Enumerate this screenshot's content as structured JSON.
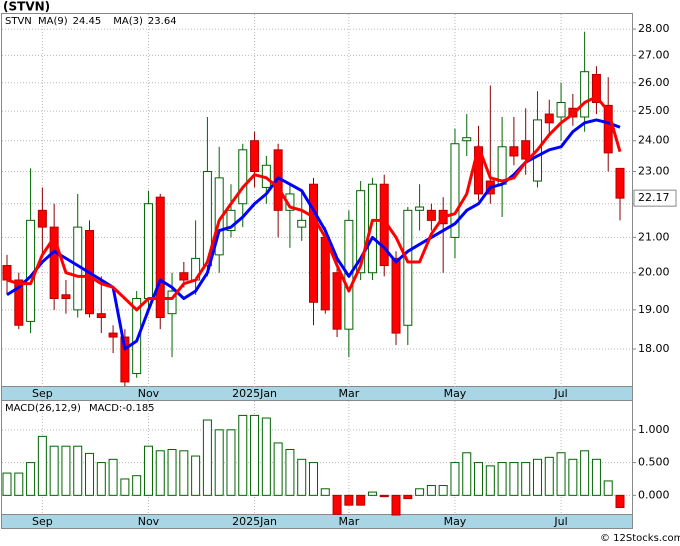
{
  "chart_data": [
    {
      "type": "candlestick",
      "title": "(STVN)",
      "ticker": "STVN",
      "categories": [
        null,
        null,
        null,
        "Sep",
        null,
        null,
        null,
        null,
        null,
        null,
        null,
        null,
        "Nov",
        null,
        null,
        null,
        null,
        null,
        null,
        null,
        null,
        "2025Jan",
        null,
        null,
        null,
        null,
        null,
        null,
        null,
        "Mar",
        null,
        null,
        null,
        null,
        null,
        null,
        null,
        null,
        "May",
        null,
        null,
        null,
        null,
        null,
        null,
        null,
        null,
        "Jul",
        null,
        null,
        null,
        null,
        null
      ],
      "open": [
        20.2,
        19.8,
        18.7,
        21.8,
        21.3,
        19.4,
        19.0,
        21.2,
        18.9,
        18.4,
        18.3,
        17.4,
        19.3,
        22.2,
        18.9,
        20.0,
        19.8,
        20.2,
        20.5,
        21.2,
        22.0,
        24.0,
        22.5,
        23.7,
        21.8,
        21.3,
        22.6,
        21.0,
        20.0,
        18.5,
        20.0,
        20.0,
        22.6,
        20.4,
        18.6,
        21.8,
        21.8,
        21.8,
        21.0,
        24.0,
        23.8,
        22.7,
        22.6,
        23.8,
        24.0,
        22.7,
        24.9,
        24.8,
        25.1,
        24.8,
        26.3,
        25.2,
        23.1
      ],
      "high": [
        20.5,
        20.0,
        23.1,
        22.5,
        22.0,
        19.8,
        22.3,
        21.5,
        19.9,
        18.6,
        18.5,
        19.5,
        22.4,
        22.3,
        20.0,
        20.3,
        21.5,
        24.8,
        23.8,
        22.6,
        23.9,
        24.3,
        23.5,
        23.9,
        22.6,
        22.4,
        22.8,
        21.3,
        20.4,
        21.8,
        22.7,
        22.8,
        22.9,
        20.6,
        21.9,
        22.6,
        22.0,
        22.2,
        24.4,
        24.9,
        24.5,
        25.9,
        24.8,
        24.8,
        25.1,
        25.7,
        25.4,
        26.0,
        25.6,
        27.9,
        26.6,
        26.2,
        23.1
      ],
      "low": [
        19.4,
        18.5,
        18.4,
        20.5,
        19.0,
        18.9,
        18.8,
        18.8,
        18.4,
        17.9,
        17.1,
        17.3,
        19.0,
        18.5,
        17.8,
        19.6,
        19.4,
        19.9,
        20.0,
        21.0,
        21.3,
        22.5,
        22.0,
        21.0,
        20.7,
        20.9,
        18.6,
        18.9,
        18.3,
        17.8,
        19.8,
        19.8,
        19.9,
        18.1,
        18.1,
        21.2,
        21.2,
        20.0,
        20.4,
        23.5,
        22.1,
        22.0,
        21.6,
        23.2,
        22.9,
        22.5,
        24.2,
        24.0,
        24.5,
        24.3,
        24.9,
        23.0,
        21.5
      ],
      "close": [
        19.8,
        18.6,
        21.5,
        21.3,
        19.3,
        19.3,
        21.3,
        18.9,
        18.8,
        18.3,
        17.2,
        19.3,
        22.0,
        18.8,
        19.5,
        19.8,
        20.4,
        23.0,
        22.8,
        21.8,
        23.7,
        23.0,
        23.2,
        21.8,
        22.3,
        21.5,
        19.2,
        19.0,
        18.5,
        21.5,
        22.4,
        22.6,
        20.2,
        18.4,
        21.8,
        21.9,
        21.5,
        21.4,
        23.9,
        24.1,
        22.3,
        22.3,
        23.8,
        23.5,
        23.4,
        24.7,
        24.6,
        25.3,
        24.8,
        26.4,
        25.3,
        23.6,
        22.17
      ],
      "series": [
        {
          "name": "MA(9)",
          "color": "#0000ff",
          "values": [
            19.4,
            19.6,
            19.9,
            20.3,
            20.6,
            20.4,
            20.2,
            20.0,
            19.8,
            19.6,
            18.0,
            18.2,
            19.0,
            19.8,
            19.6,
            19.3,
            19.5,
            20.0,
            21.2,
            21.3,
            21.6,
            22.0,
            22.3,
            22.8,
            22.6,
            22.4,
            21.8,
            21.2,
            20.4,
            19.9,
            20.4,
            21.0,
            20.7,
            20.3,
            20.6,
            20.8,
            21.0,
            21.2,
            21.4,
            21.8,
            22.0,
            22.5,
            22.6,
            22.9,
            23.3,
            23.5,
            23.7,
            23.8,
            24.3,
            24.6,
            24.7,
            24.6,
            24.45
          ]
        },
        {
          "name": "MA(3)",
          "color": "#ff0000",
          "values": [
            19.8,
            19.7,
            19.7,
            20.5,
            21.0,
            20.0,
            19.9,
            19.9,
            19.7,
            19.6,
            19.3,
            19.0,
            19.3,
            19.3,
            19.3,
            19.7,
            19.8,
            20.3,
            21.5,
            22.0,
            22.5,
            22.9,
            22.8,
            22.5,
            21.9,
            21.8,
            21.6,
            21.0,
            20.2,
            19.5,
            20.2,
            21.5,
            21.5,
            21.0,
            20.3,
            20.3,
            21.1,
            21.6,
            21.7,
            22.3,
            23.8,
            22.8,
            22.7,
            22.8,
            23.3,
            23.7,
            24.2,
            24.6,
            24.9,
            25.3,
            25.5,
            25.0,
            23.64
          ]
        }
      ],
      "up_color": "#006400",
      "down_color": "#ff0000",
      "log_scale": true,
      "grid": true,
      "ylim": [
        17.08,
        28.59
      ],
      "yticks": [
        {
          "value": 18,
          "label": "18.00"
        },
        {
          "value": 19,
          "label": "19.00"
        },
        {
          "value": 20,
          "label": "20.00"
        },
        {
          "value": 21,
          "label": "21.00"
        },
        {
          "value": 22,
          "label": "22.00"
        },
        {
          "value": 23,
          "label": "23.00"
        },
        {
          "value": 24,
          "label": "24.00"
        },
        {
          "value": 25,
          "label": "25.00"
        },
        {
          "value": 26,
          "label": "26.00"
        },
        {
          "value": 27,
          "label": "27.00"
        },
        {
          "value": 28,
          "label": "28.00"
        }
      ]
    },
    {
      "type": "bar",
      "title": "MACD(26,12,9)",
      "legend_label": "MACD:",
      "values": [
        0.34,
        0.34,
        0.5,
        0.9,
        0.75,
        0.75,
        0.75,
        0.64,
        0.5,
        0.55,
        0.25,
        0.3,
        0.75,
        0.68,
        0.7,
        0.68,
        0.6,
        1.15,
        1.0,
        1.0,
        1.22,
        1.22,
        1.18,
        0.8,
        0.7,
        0.55,
        0.5,
        0.1,
        -0.29,
        -0.15,
        -0.15,
        0.05,
        -0.02,
        -0.3,
        -0.05,
        0.1,
        0.15,
        0.15,
        0.5,
        0.65,
        0.5,
        0.45,
        0.5,
        0.5,
        0.5,
        0.55,
        0.58,
        0.65,
        0.55,
        0.68,
        0.55,
        0.22,
        -0.185
      ],
      "up_color": "#006400",
      "down_color": "#ff0000",
      "grid": true,
      "ylim": [
        -0.3,
        1.44
      ],
      "yticks": [
        {
          "value": 0,
          "label": "0.000"
        },
        {
          "value": 0.5,
          "label": "0.500"
        },
        {
          "value": 1,
          "label": "1.000"
        }
      ]
    },
    {
      "type": "watermark",
      "text": "© 12Stocks.com"
    }
  ]
}
